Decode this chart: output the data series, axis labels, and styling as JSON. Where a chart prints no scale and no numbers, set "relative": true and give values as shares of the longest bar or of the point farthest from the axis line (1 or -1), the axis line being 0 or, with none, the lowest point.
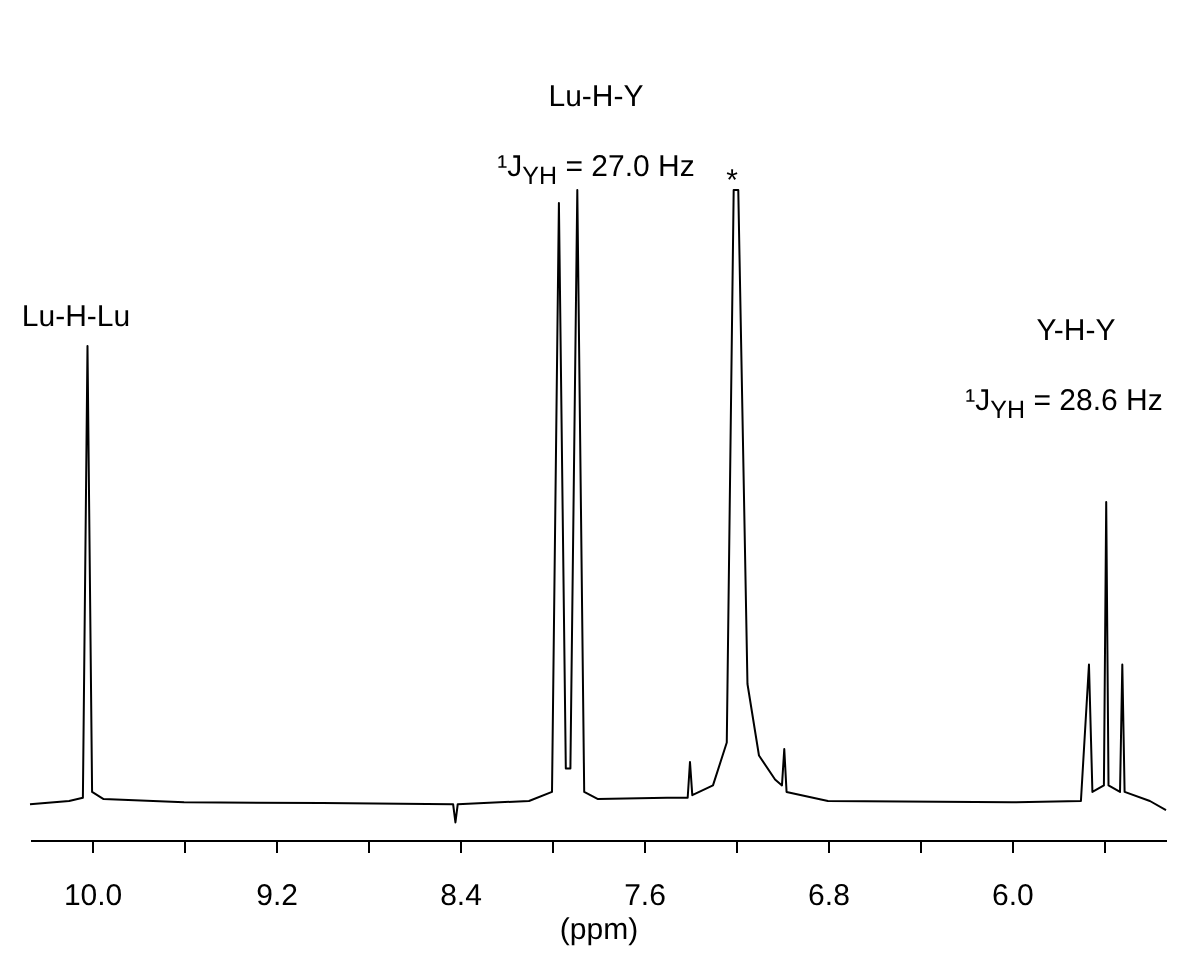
{
  "chart_data": {
    "type": "line",
    "xlabel": "(ppm)",
    "relative": true,
    "grid": false,
    "legend": false,
    "marker": "none",
    "line_style": "solid",
    "xlim": [
      10.27,
      5.33
    ],
    "xticks": [
      {
        "value": 10,
        "label": "10.0"
      },
      {
        "value": 9.6,
        "label": null
      },
      9.2,
      {
        "value": 8.8,
        "label": null
      },
      8.4,
      {
        "value": 8.0,
        "label": null
      },
      7.6,
      {
        "value": 7.2,
        "label": null
      },
      6.8,
      {
        "value": 6.4,
        "label": null
      },
      {
        "value": 6,
        "label": "6.0"
      },
      {
        "value": 5.6,
        "label": null
      }
    ],
    "annotations": [
      "Lu-H-Lu",
      "Lu-H-Y",
      "¹J$_{YH}$ = 27.0 Hz",
      "*",
      "Y-H-Y",
      "¹J$_{YH}$ = 28.6 Hz"
    ],
    "series": [
      {
        "color": "#000000",
        "x": [
          10.27,
          10.1,
          10.04,
          10.02,
          10.0,
          9.95,
          9.6,
          9.0,
          8.43,
          8.42,
          8.41,
          8.1,
          8.0,
          7.97,
          7.94,
          7.92,
          7.89,
          7.86,
          7.8,
          7.5,
          7.41,
          7.4,
          7.39,
          7.3,
          7.24,
          7.21,
          7.19,
          7.15,
          7.1,
          7.03,
          7.0,
          6.99,
          6.98,
          6.8,
          6.0,
          5.7,
          5.665,
          5.65,
          5.6,
          5.59,
          5.58,
          5.53,
          5.52,
          5.51,
          5.4,
          5.33
        ],
        "values": [
          0.055,
          0.06,
          0.065,
          0.76,
          0.074,
          0.063,
          0.058,
          0.057,
          0.055,
          0.027,
          0.055,
          0.06,
          0.074,
          0.98,
          0.11,
          0.11,
          1.0,
          0.074,
          0.063,
          0.065,
          0.065,
          0.12,
          0.069,
          0.084,
          0.15,
          1.0,
          1.0,
          0.24,
          0.13,
          0.093,
          0.084,
          0.14,
          0.074,
          0.06,
          0.058,
          0.06,
          0.27,
          0.074,
          0.084,
          0.52,
          0.084,
          0.074,
          0.27,
          0.074,
          0.06,
          0.046
        ]
      }
    ]
  }
}
